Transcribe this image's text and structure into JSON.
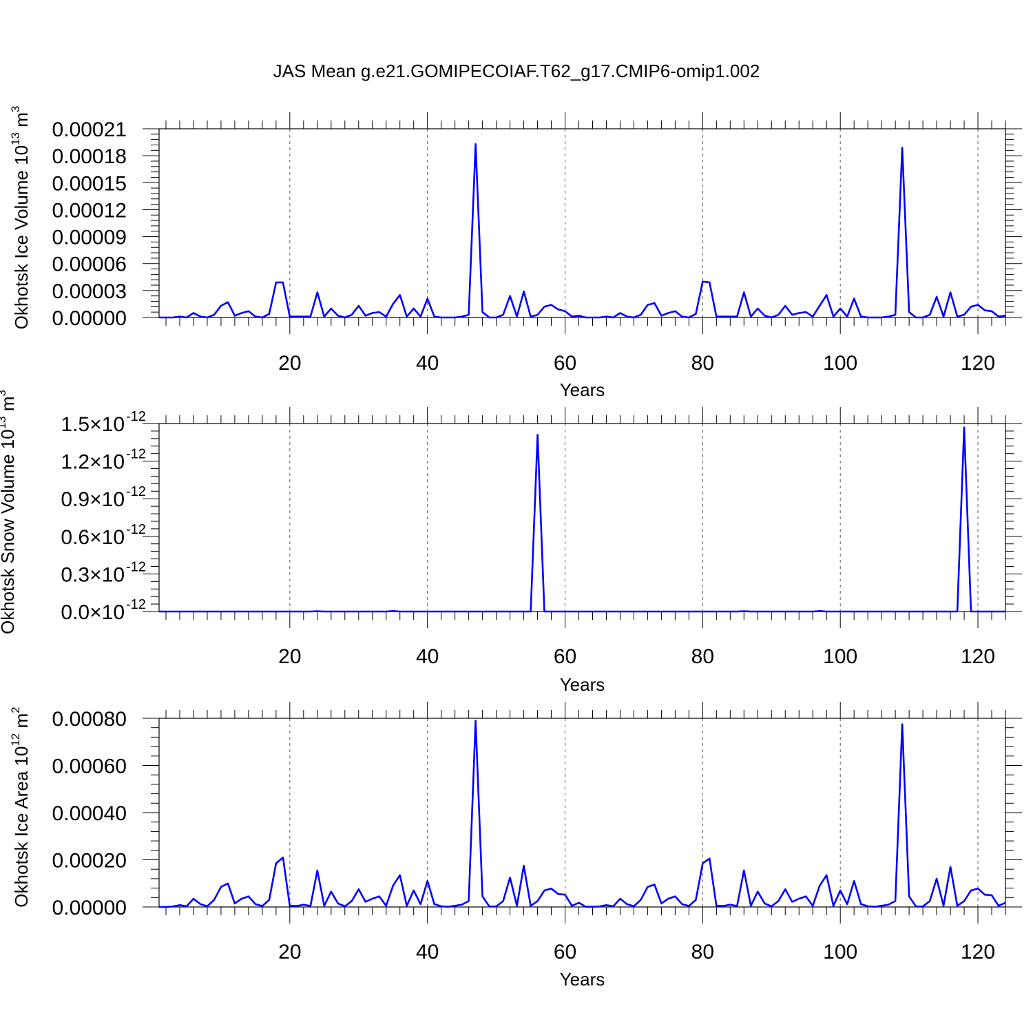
{
  "title": "JAS Mean g.e21.GOMIPECOIAF.T62_g17.CMIP6-omip1.002",
  "chart_data": [
    {
      "type": "line",
      "xlabel": "Years",
      "ylabel": "Okhotsk Ice Volume 10",
      "ylabel_exp": "13",
      "ylabel_unit": " m",
      "ylabel_unit_exp": "3",
      "xlim": [
        1,
        124
      ],
      "ylim": [
        0,
        0.00021
      ],
      "xticks": [
        20,
        40,
        60,
        80,
        100,
        120
      ],
      "xtick_labels": [
        "20",
        "40",
        "60",
        "80",
        "100",
        "120"
      ],
      "yticks": [
        0,
        3e-05,
        6e-05,
        9e-05,
        0.00012,
        0.00015,
        0.00018,
        0.00021
      ],
      "ytick_labels": [
        "0.00000",
        "0.00003",
        "0.00006",
        "0.00009",
        "0.00012",
        "0.00015",
        "0.00018",
        "0.00021"
      ],
      "grid": "x-dashed",
      "color": "#0000ff",
      "series": [
        {
          "x": [
            1,
            2,
            3,
            4,
            5,
            6,
            7,
            8,
            9,
            10,
            11,
            12,
            13,
            14,
            15,
            16,
            17,
            18,
            19,
            20,
            21,
            22,
            23,
            24,
            25,
            26,
            27,
            28,
            29,
            30,
            31,
            32,
            33,
            34,
            35,
            36,
            37,
            38,
            39,
            40,
            41,
            42,
            43,
            44,
            45,
            46,
            47,
            48,
            49,
            50,
            51,
            52,
            53,
            54,
            55,
            56,
            57,
            58,
            59,
            60,
            61,
            62,
            63,
            64,
            65,
            66,
            67,
            68,
            69,
            70,
            71,
            72,
            73,
            74,
            75,
            76,
            77,
            78,
            79,
            80,
            81,
            82,
            83,
            84,
            85,
            86,
            87,
            88,
            89,
            90,
            91,
            92,
            93,
            94,
            95,
            96,
            97,
            98,
            99,
            100,
            101,
            102,
            103,
            104,
            105,
            106,
            107,
            108,
            109,
            110,
            111,
            112,
            113,
            114,
            115,
            116,
            117,
            118,
            119,
            120,
            121,
            122,
            123,
            124
          ],
          "y": [
            0.0,
            0.0,
            0.0,
            1e-06,
            0.0,
            5e-06,
            1e-06,
            0.0,
            3e-06,
            1.3e-05,
            1.7e-05,
            2e-06,
            5e-06,
            7e-06,
            1e-06,
            0.0,
            4e-06,
            3.9e-05,
            3.9e-05,
            1e-06,
            1e-06,
            1e-06,
            1e-06,
            2.8e-05,
            1e-06,
            1e-05,
            2e-06,
            0.0,
            3e-06,
            1.3e-05,
            2e-06,
            5e-06,
            6e-06,
            1e-06,
            1.5e-05,
            2.5e-05,
            1e-06,
            1e-05,
            1e-06,
            2.1e-05,
            1e-06,
            0.0,
            0.0,
            0.0,
            1e-06,
            3e-06,
            0.000193,
            6e-06,
            0.0,
            0.0,
            3e-06,
            2.4e-05,
            1e-06,
            2.9e-05,
            1e-06,
            3e-06,
            1.2e-05,
            1.4e-05,
            9e-06,
            7e-06,
            1e-06,
            2e-06,
            0.0,
            0.0,
            0.0,
            1e-06,
            0.0,
            5e-06,
            1e-06,
            0.0,
            3e-06,
            1.4e-05,
            1.6e-05,
            2e-06,
            5e-06,
            7e-06,
            1e-06,
            0.0,
            4e-06,
            4e-05,
            3.9e-05,
            1e-06,
            1e-06,
            1e-06,
            1e-06,
            2.8e-05,
            1e-06,
            1e-05,
            2e-06,
            0.0,
            3e-06,
            1.3e-05,
            3e-06,
            5e-06,
            6e-06,
            1e-06,
            1.3e-05,
            2.5e-05,
            1e-06,
            1e-05,
            1e-06,
            2.1e-05,
            1e-06,
            0.0,
            0.0,
            0.0,
            1e-06,
            3e-06,
            0.000189,
            6e-06,
            0.0,
            0.0,
            3e-06,
            2.3e-05,
            1e-06,
            2.8e-05,
            1e-06,
            3e-06,
            1.2e-05,
            1.4e-05,
            8e-06,
            7e-06,
            1e-06,
            2e-06
          ]
        }
      ]
    },
    {
      "type": "line",
      "xlabel": "Years",
      "ylabel": "Okhotsk Snow Volume 10",
      "ylabel_exp": "13",
      "ylabel_unit": " m",
      "ylabel_unit_exp": "3",
      "xlim": [
        1,
        124
      ],
      "ylim": [
        0,
        1.5
      ],
      "y_multiplier": "10^-12",
      "xticks": [
        20,
        40,
        60,
        80,
        100,
        120
      ],
      "xtick_labels": [
        "20",
        "40",
        "60",
        "80",
        "100",
        "120"
      ],
      "yticks": [
        0,
        0.3,
        0.6,
        0.9,
        1.2,
        1.5
      ],
      "ytick_labels": [
        "0.0",
        "0.3",
        "0.6",
        "0.9",
        "1.2",
        "1.5"
      ],
      "ytick_suffix": "×10",
      "ytick_suffix_exp": "-12",
      "grid": "x-dashed",
      "color": "#0000ff",
      "series": [
        {
          "x": [
            1,
            2,
            3,
            4,
            5,
            6,
            7,
            8,
            9,
            10,
            11,
            12,
            13,
            14,
            15,
            16,
            17,
            18,
            19,
            20,
            21,
            22,
            23,
            24,
            25,
            26,
            27,
            28,
            29,
            30,
            31,
            32,
            33,
            34,
            35,
            36,
            37,
            38,
            39,
            40,
            41,
            42,
            43,
            44,
            45,
            46,
            47,
            48,
            49,
            50,
            51,
            52,
            53,
            54,
            55,
            56,
            57,
            58,
            59,
            60,
            61,
            62,
            63,
            64,
            65,
            66,
            67,
            68,
            69,
            70,
            71,
            72,
            73,
            74,
            75,
            76,
            77,
            78,
            79,
            80,
            81,
            82,
            83,
            84,
            85,
            86,
            87,
            88,
            89,
            90,
            91,
            92,
            93,
            94,
            95,
            96,
            97,
            98,
            99,
            100,
            101,
            102,
            103,
            104,
            105,
            106,
            107,
            108,
            109,
            110,
            111,
            112,
            113,
            114,
            115,
            116,
            117,
            118,
            119,
            120,
            121,
            122,
            123,
            124
          ],
          "y": [
            0,
            0,
            0,
            0,
            0,
            0,
            0,
            0,
            0,
            0,
            0,
            0,
            0,
            0,
            0,
            0,
            0,
            0,
            0,
            0,
            0,
            0,
            0,
            0.002,
            0,
            0,
            0,
            0,
            0,
            0,
            0,
            0,
            0,
            0,
            0.004,
            0,
            0,
            0,
            0,
            0,
            0,
            0,
            0,
            0,
            0,
            0,
            0,
            0,
            0,
            0,
            0,
            0,
            0,
            0,
            0,
            1.41,
            0,
            0,
            0,
            0,
            0,
            0,
            0,
            0,
            0,
            0,
            0,
            0,
            0,
            0,
            0,
            0,
            0,
            0,
            0,
            0,
            0,
            0,
            0,
            0,
            0,
            0,
            0,
            0,
            0,
            0.002,
            0,
            0,
            0,
            0,
            0,
            0,
            0,
            0,
            0,
            0,
            0.004,
            0,
            0,
            0,
            0,
            0,
            0,
            0,
            0,
            0,
            0,
            0,
            0,
            0,
            0,
            0,
            0,
            0,
            0,
            0,
            0,
            1.47,
            0,
            0,
            0,
            0,
            0,
            0
          ]
        }
      ]
    },
    {
      "type": "line",
      "xlabel": "Years",
      "ylabel": "Okhotsk Ice Area 10",
      "ylabel_exp": "12",
      "ylabel_unit": " m",
      "ylabel_unit_exp": "2",
      "xlim": [
        1,
        124
      ],
      "ylim": [
        0,
        0.0008
      ],
      "xticks": [
        20,
        40,
        60,
        80,
        100,
        120
      ],
      "xtick_labels": [
        "20",
        "40",
        "60",
        "80",
        "100",
        "120"
      ],
      "yticks": [
        0,
        0.0002,
        0.0004,
        0.0006,
        0.0008
      ],
      "ytick_labels": [
        "0.00000",
        "0.00020",
        "0.00040",
        "0.00060",
        "0.00080"
      ],
      "grid": "x-dashed",
      "color": "#0000ff",
      "series": [
        {
          "x": [
            1,
            2,
            3,
            4,
            5,
            6,
            7,
            8,
            9,
            10,
            11,
            12,
            13,
            14,
            15,
            16,
            17,
            18,
            19,
            20,
            21,
            22,
            23,
            24,
            25,
            26,
            27,
            28,
            29,
            30,
            31,
            32,
            33,
            34,
            35,
            36,
            37,
            38,
            39,
            40,
            41,
            42,
            43,
            44,
            45,
            46,
            47,
            48,
            49,
            50,
            51,
            52,
            53,
            54,
            55,
            56,
            57,
            58,
            59,
            60,
            61,
            62,
            63,
            64,
            65,
            66,
            67,
            68,
            69,
            70,
            71,
            72,
            73,
            74,
            75,
            76,
            77,
            78,
            79,
            80,
            81,
            82,
            83,
            84,
            85,
            86,
            87,
            88,
            89,
            90,
            91,
            92,
            93,
            94,
            95,
            96,
            97,
            98,
            99,
            100,
            101,
            102,
            103,
            104,
            105,
            106,
            107,
            108,
            109,
            110,
            111,
            112,
            113,
            114,
            115,
            116,
            117,
            118,
            119,
            120,
            121,
            122,
            123,
            124
          ],
          "y": [
            0.0,
            0.0,
            2e-06,
            8e-06,
            3e-06,
            3.5e-05,
            1.2e-05,
            3e-06,
            3e-05,
            8.5e-05,
            0.0001,
            1.5e-05,
            3.5e-05,
            4.5e-05,
            1.2e-05,
            4e-06,
            3e-05,
            0.000185,
            0.00021,
            5e-06,
            4e-06,
            1e-05,
            4e-06,
            0.000155,
            5e-06,
            6.5e-05,
            1.5e-05,
            3e-06,
            2.5e-05,
            7.5e-05,
            2.2e-05,
            3.5e-05,
            4.5e-05,
            5e-06,
            9e-05,
            0.000135,
            5e-06,
            7e-05,
            1.2e-05,
            0.00011,
            1.2e-05,
            3e-06,
            1e-06,
            5e-06,
            1e-05,
            2.5e-05,
            0.00079,
            4.5e-05,
            2e-06,
            2e-06,
            2.5e-05,
            0.000125,
            5e-06,
            0.000175,
            5e-06,
            2.5e-05,
            7e-05,
            7.8e-05,
            5.5e-05,
            5.2e-05,
            5e-06,
            1.8e-05,
            1e-06,
            1e-06,
            2e-06,
            8e-06,
            3e-06,
            3.5e-05,
            1.2e-05,
            3e-06,
            3e-05,
            8.5e-05,
            9.5e-05,
            1.5e-05,
            3.5e-05,
            4.5e-05,
            1.2e-05,
            4e-06,
            3e-05,
            0.000185,
            0.000205,
            5e-06,
            4e-06,
            1e-05,
            4e-06,
            0.000155,
            5e-06,
            6.5e-05,
            1.5e-05,
            3e-06,
            2.5e-05,
            7.5e-05,
            2.2e-05,
            3.5e-05,
            4.5e-05,
            5e-06,
            9e-05,
            0.000135,
            5e-06,
            7e-05,
            1.2e-05,
            0.00011,
            1.2e-05,
            3e-06,
            1e-06,
            5e-06,
            1e-05,
            2.5e-05,
            0.000775,
            4.5e-05,
            2e-06,
            2e-06,
            2.5e-05,
            0.00012,
            5e-06,
            0.00017,
            5e-06,
            2.5e-05,
            7e-05,
            7.8e-05,
            5.2e-05,
            5e-05,
            5e-06,
            1.8e-05
          ]
        }
      ]
    }
  ]
}
